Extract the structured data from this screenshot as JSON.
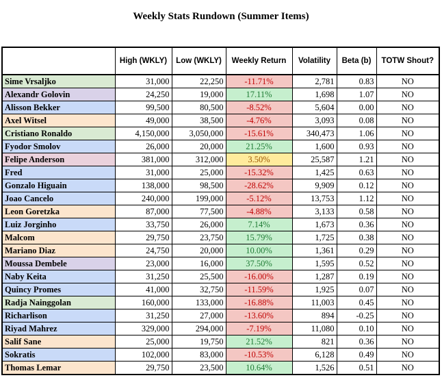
{
  "title": "Weekly Stats Rundown (Summer Items)",
  "headers": [
    "",
    "High (WKLY)",
    "Low (WKLY)",
    "Weekly Return",
    "Volatility",
    "Beta (b)",
    "TOTW Shout?"
  ],
  "colors": {
    "green_name": "#d9ead3",
    "purple_name": "#d9d2e9",
    "blue_name": "#c9daf8",
    "orange_name": "#fce5cd",
    "pink_name": "#ead1dc",
    "neg_bg": "#f4c7c3",
    "pos_bg": "#c6efce",
    "mid_bg": "#ffeb9c"
  },
  "rows": [
    {
      "name": "Sime Vrsaljko",
      "name_color": "#d9ead3",
      "high": "31,000",
      "low": "22,250",
      "ret": "-11.71%",
      "ret_type": "neg",
      "vol": "2,781",
      "beta": "0.83",
      "totw": "NO"
    },
    {
      "name": "Alexandr Golovin",
      "name_color": "#d9d2e9",
      "high": "24,250",
      "low": "19,000",
      "ret": "17.11%",
      "ret_type": "pos",
      "vol": "1,698",
      "beta": "1.07",
      "totw": "NO"
    },
    {
      "name": "Alisson Bekker",
      "name_color": "#c9daf8",
      "high": "99,500",
      "low": "80,500",
      "ret": "-8.52%",
      "ret_type": "neg",
      "vol": "5,604",
      "beta": "0.00",
      "totw": "NO"
    },
    {
      "name": "Axel Witsel",
      "name_color": "#fce5cd",
      "high": "49,000",
      "low": "38,500",
      "ret": "-4.76%",
      "ret_type": "neg",
      "vol": "3,093",
      "beta": "0.08",
      "totw": "NO"
    },
    {
      "name": "Cristiano Ronaldo",
      "name_color": "#d9ead3",
      "high": "4,150,000",
      "low": "3,050,000",
      "ret": "-15.61%",
      "ret_type": "neg",
      "vol": "340,473",
      "beta": "1.06",
      "totw": "NO"
    },
    {
      "name": "Fyodor Smolov",
      "name_color": "#c9daf8",
      "high": "26,000",
      "low": "20,000",
      "ret": "21.25%",
      "ret_type": "pos",
      "vol": "1,600",
      "beta": "0.93",
      "totw": "NO"
    },
    {
      "name": "Felipe Anderson",
      "name_color": "#ead1dc",
      "high": "381,000",
      "low": "312,000",
      "ret": "3.50%",
      "ret_type": "mid",
      "vol": "25,587",
      "beta": "1.21",
      "totw": "NO"
    },
    {
      "name": "Fred",
      "name_color": "#c9daf8",
      "high": "31,000",
      "low": "25,000",
      "ret": "-15.32%",
      "ret_type": "neg",
      "vol": "1,425",
      "beta": "0.63",
      "totw": "NO"
    },
    {
      "name": "Gonzalo Higuain",
      "name_color": "#c9daf8",
      "high": "138,000",
      "low": "98,500",
      "ret": "-28.62%",
      "ret_type": "neg",
      "vol": "9,909",
      "beta": "0.12",
      "totw": "NO"
    },
    {
      "name": "Joao Cancelo",
      "name_color": "#c9daf8",
      "high": "240,000",
      "low": "199,000",
      "ret": "-5.12%",
      "ret_type": "neg",
      "vol": "13,753",
      "beta": "1.12",
      "totw": "NO"
    },
    {
      "name": "Leon Goretzka",
      "name_color": "#fce5cd",
      "high": "87,000",
      "low": "77,500",
      "ret": "-4.88%",
      "ret_type": "neg",
      "vol": "3,133",
      "beta": "0.58",
      "totw": "NO"
    },
    {
      "name": "Luiz Jorginho",
      "name_color": "#c9daf8",
      "high": "33,750",
      "low": "26,000",
      "ret": "7.14%",
      "ret_type": "pos",
      "vol": "1,673",
      "beta": "0.36",
      "totw": "NO"
    },
    {
      "name": "Malcom",
      "name_color": "#fce5cd",
      "high": "29,750",
      "low": "23,750",
      "ret": "15.79%",
      "ret_type": "pos",
      "vol": "1,725",
      "beta": "0.38",
      "totw": "NO"
    },
    {
      "name": "Mariano Diaz",
      "name_color": "#fce5cd",
      "high": "24,750",
      "low": "20,000",
      "ret": "10.00%",
      "ret_type": "pos",
      "vol": "1,361",
      "beta": "0.29",
      "totw": "NO"
    },
    {
      "name": "Moussa Dembele",
      "name_color": "#d9d2e9",
      "high": "23,000",
      "low": "16,000",
      "ret": "37.50%",
      "ret_type": "pos",
      "vol": "1,595",
      "beta": "0.52",
      "totw": "NO"
    },
    {
      "name": "Naby Keita",
      "name_color": "#c9daf8",
      "high": "31,250",
      "low": "25,500",
      "ret": "-16.00%",
      "ret_type": "neg",
      "vol": "1,287",
      "beta": "0.19",
      "totw": "NO"
    },
    {
      "name": "Quincy Promes",
      "name_color": "#c9daf8",
      "high": "41,000",
      "low": "32,750",
      "ret": "-11.59%",
      "ret_type": "neg",
      "vol": "1,925",
      "beta": "0.07",
      "totw": "NO"
    },
    {
      "name": "Radja Nainggolan",
      "name_color": "#d9ead3",
      "high": "160,000",
      "low": "133,000",
      "ret": "-16.88%",
      "ret_type": "neg",
      "vol": "11,003",
      "beta": "0.45",
      "totw": "NO"
    },
    {
      "name": "Richarlison",
      "name_color": "#c9daf8",
      "high": "31,250",
      "low": "27,000",
      "ret": "-13.60%",
      "ret_type": "neg",
      "vol": "894",
      "beta": "-0.25",
      "totw": "NO"
    },
    {
      "name": "Riyad Mahrez",
      "name_color": "#c9daf8",
      "high": "329,000",
      "low": "294,000",
      "ret": "-7.19%",
      "ret_type": "neg",
      "vol": "11,080",
      "beta": "0.10",
      "totw": "NO"
    },
    {
      "name": "Salif Sane",
      "name_color": "#fce5cd",
      "high": "25,000",
      "low": "19,750",
      "ret": "21.52%",
      "ret_type": "pos",
      "vol": "821",
      "beta": "0.36",
      "totw": "NO"
    },
    {
      "name": "Sokratis",
      "name_color": "#c9daf8",
      "high": "102,000",
      "low": "83,000",
      "ret": "-10.53%",
      "ret_type": "neg",
      "vol": "6,128",
      "beta": "0.49",
      "totw": "NO"
    },
    {
      "name": "Thomas Lemar",
      "name_color": "#fce5cd",
      "high": "29,750",
      "low": "23,500",
      "ret": "10.64%",
      "ret_type": "pos",
      "vol": "1,526",
      "beta": "0.51",
      "totw": "NO"
    }
  ]
}
